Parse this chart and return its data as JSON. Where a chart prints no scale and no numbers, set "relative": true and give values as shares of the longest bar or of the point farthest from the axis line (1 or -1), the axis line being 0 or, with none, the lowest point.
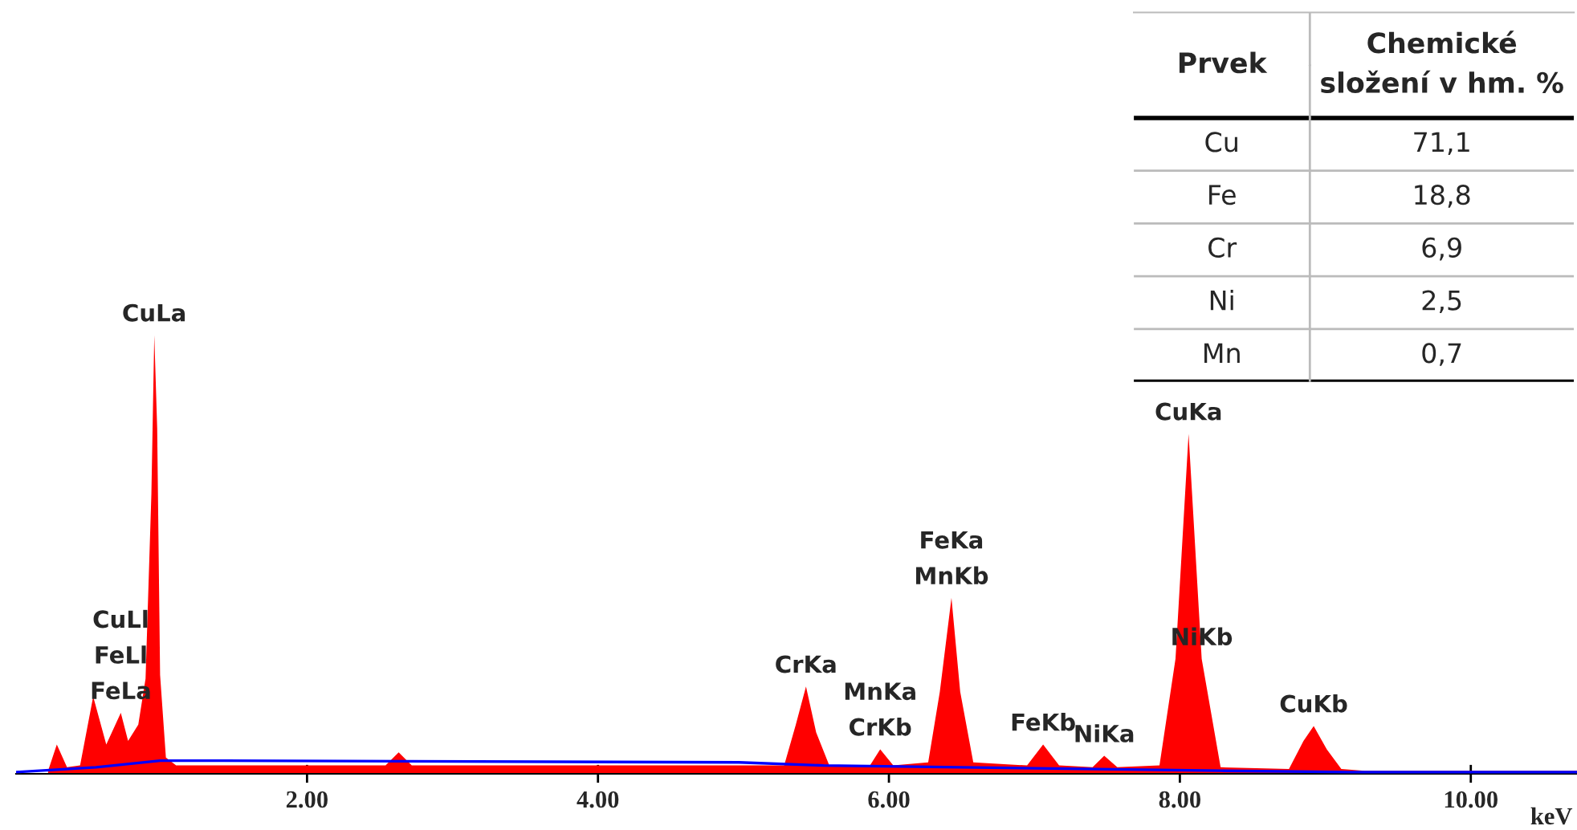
{
  "chart_data": [
    {
      "type": "area",
      "relative": true,
      "xlabel": "keV",
      "xlim": [
        0,
        10.73
      ],
      "xticks": [
        {
          "value": 2,
          "label": "2.00"
        },
        {
          "value": 4,
          "label": "4.00"
        },
        {
          "value": 6,
          "label": "6.00"
        },
        {
          "value": 8,
          "label": "8.00"
        },
        {
          "value": 10,
          "label": "10.00"
        }
      ],
      "series": [
        {
          "type": "area",
          "color": "#ff0000",
          "x": [
            0.22,
            0.28,
            0.35,
            0.44,
            0.53,
            0.62,
            0.72,
            0.77,
            0.84,
            0.89,
            0.93,
            0.95,
            0.97,
            0.99,
            1.03,
            1.1,
            2.54,
            2.63,
            2.72,
            5.28,
            5.36,
            5.43,
            5.5,
            5.59,
            5.87,
            5.94,
            6.03,
            6.27,
            6.35,
            6.43,
            6.49,
            6.58,
            6.95,
            7.06,
            7.17,
            7.4,
            7.48,
            7.57,
            7.86,
            7.97,
            8.06,
            8.15,
            8.28,
            8.75,
            8.85,
            8.92,
            9.01,
            9.11,
            9.27,
            10.73
          ],
          "values": [
            0.007,
            0.067,
            0.015,
            0.019,
            0.176,
            0.067,
            0.139,
            0.075,
            0.112,
            0.217,
            0.637,
            1.0,
            0.787,
            0.225,
            0.037,
            0.019,
            0.019,
            0.049,
            0.019,
            0.019,
            0.112,
            0.199,
            0.094,
            0.019,
            0.019,
            0.056,
            0.019,
            0.026,
            0.187,
            0.401,
            0.187,
            0.026,
            0.019,
            0.067,
            0.019,
            0.015,
            0.041,
            0.015,
            0.019,
            0.262,
            0.775,
            0.262,
            0.015,
            0.011,
            0.075,
            0.109,
            0.056,
            0.011,
            0.007,
            0.007
          ]
        },
        {
          "type": "line",
          "color": "#0000ff",
          "x": [
            0,
            0.55,
            0.99,
            1.43,
            4.97,
            5.55,
            6.49,
            8.28,
            9.16,
            10.73
          ],
          "values": [
            0.004,
            0.015,
            0.03,
            0.03,
            0.026,
            0.019,
            0.015,
            0.007,
            0.004,
            0.004
          ]
        }
      ],
      "annotations": [
        {
          "text": "CuLa",
          "x": 0.95,
          "y": 1.0
        },
        {
          "text": "FeLa",
          "x": 0.72,
          "y": 0.139
        },
        "FeLl",
        "CuLl",
        {
          "text": "CrKa",
          "x": 5.43,
          "y": 0.199
        },
        {
          "text": "CrKb",
          "x": 5.94,
          "y": 0.056
        },
        "MnKa",
        {
          "text": "MnKb",
          "x": 6.43,
          "y": 0.401
        },
        "FeKa",
        {
          "text": "FeKb",
          "x": 7.06,
          "y": 0.067
        },
        {
          "text": "NiKa",
          "x": 7.48,
          "y": 0.041
        },
        {
          "text": "NiKb",
          "x": 8.15,
          "y": 0.262
        },
        {
          "text": "CuKa",
          "x": 8.06,
          "y": 0.775
        },
        {
          "text": "CuKb",
          "x": 8.92,
          "y": 0.109
        }
      ]
    },
    {
      "type": "other",
      "xlabel": "Prvek",
      "ylabel": "Chemické složení v hm. %",
      "categories": [
        "Cu",
        "Fe",
        "Cr",
        "Ni",
        "Mn"
      ],
      "value_labels": [
        "71,1",
        "18,8",
        "6,9",
        "2,5",
        "0,7"
      ]
    }
  ]
}
